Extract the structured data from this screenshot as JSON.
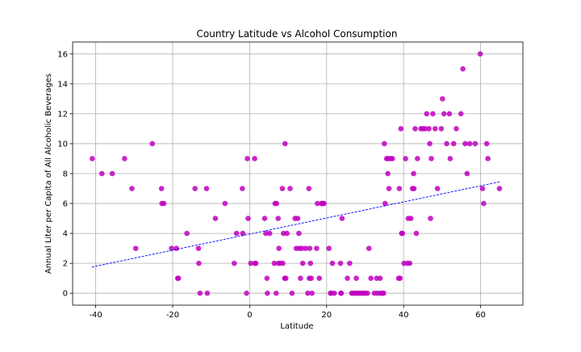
{
  "chart_data": {
    "type": "scatter",
    "title": "Country Latitude vs Alcohol Consumption",
    "xlabel": "Latitude",
    "ylabel": "Annual Liter per Capita of All Alcoholic Beverages",
    "xlim": [
      -46,
      71
    ],
    "ylim": [
      -0.8,
      16.8
    ],
    "xticks": [
      -40,
      -20,
      0,
      20,
      40,
      60
    ],
    "yticks": [
      0,
      2,
      4,
      6,
      8,
      10,
      12,
      14,
      16
    ],
    "grid": true,
    "legend": "none",
    "colors": {
      "points": "#bf00bf",
      "regression": "#0000ff",
      "grid": "#b0b0b0"
    },
    "regression_line": {
      "style": "dashed",
      "x": [
        -41,
        65
      ],
      "y": [
        1.75,
        7.45
      ]
    },
    "series": [
      {
        "x": [
          -40.9,
          -38.4,
          -35.7,
          -32.5,
          -30.6,
          -29.6,
          -25.3,
          -22.9,
          -22.8,
          -22.3,
          -20.3,
          -19.0,
          -18.7,
          -18.5,
          -16.3,
          -14.2,
          -13.3,
          -13.2,
          -12.9,
          -11.2,
          -11.0,
          -8.9,
          -6.4,
          -4.0,
          -3.4,
          -1.9,
          -1.8,
          -0.8,
          -0.6,
          -0.4,
          0.3,
          1.3,
          1.4,
          1.6,
          3.9,
          4.2,
          4.5,
          4.6,
          5.2,
          6.4,
          6.6,
          6.9,
          7.0,
          7.4,
          7.5,
          7.6,
          7.9,
          8.5,
          8.6,
          8.8,
          9.1,
          9.2,
          9.4,
          9.7,
          10.5,
          11.0,
          11.8,
          12.1,
          12.5,
          12.8,
          12.9,
          13.2,
          13.5,
          13.8,
          14.5,
          15.1,
          15.4,
          15.5,
          15.6,
          15.8,
          16.0,
          16.2,
          17.4,
          17.6,
          18.1,
          18.7,
          18.8,
          19.0,
          19.3,
          20.6,
          21.0,
          21.2,
          21.5,
          22.0,
          23.6,
          23.7,
          23.8,
          24.0,
          25.4,
          26.0,
          26.5,
          26.9,
          27.5,
          27.7,
          28.0,
          28.4,
          29.0,
          29.5,
          30.0,
          30.6,
          31.0,
          31.5,
          32.4,
          33.0,
          33.2,
          33.9,
          34.0,
          34.5,
          34.8,
          35.0,
          35.2,
          35.6,
          35.9,
          36.0,
          36.2,
          36.6,
          37.1,
          38.7,
          38.9,
          39.1,
          39.3,
          39.5,
          39.7,
          40.1,
          40.5,
          41.0,
          41.2,
          41.6,
          41.9,
          42.3,
          42.6,
          42.7,
          43.0,
          43.3,
          43.6,
          44.5,
          45.0,
          45.6,
          46.0,
          46.6,
          46.8,
          47.0,
          47.2,
          47.6,
          48.2,
          48.8,
          49.8,
          50.1,
          50.5,
          51.2,
          51.9,
          52.1,
          53.0,
          53.7,
          54.9,
          55.4,
          56.0,
          56.5,
          57.2,
          58.6,
          59.9,
          60.5,
          60.8,
          61.6,
          61.9,
          64.9
        ],
        "y": [
          9,
          8,
          8,
          9,
          7,
          3,
          10,
          7,
          6,
          6,
          3,
          3,
          1,
          1,
          4,
          7,
          3,
          2,
          0,
          7,
          0,
          5,
          6,
          2,
          4,
          7,
          4,
          0,
          9,
          5,
          2,
          9,
          2,
          2,
          5,
          4,
          1,
          0,
          4,
          2,
          6,
          0,
          6,
          5,
          2,
          3,
          2,
          7,
          2,
          4,
          1,
          10,
          1,
          4,
          7,
          0,
          5,
          3,
          5,
          4,
          3,
          1,
          3,
          2,
          3,
          0,
          7,
          1,
          3,
          2,
          1,
          0,
          3,
          6,
          1,
          6,
          6,
          6,
          6,
          3,
          0,
          0,
          2,
          0,
          2,
          0,
          0,
          5,
          1,
          2,
          0,
          0,
          0,
          1,
          0,
          0,
          0,
          0,
          0,
          0,
          3,
          1,
          0,
          1,
          0,
          1,
          0,
          0,
          0,
          10,
          6,
          9,
          8,
          9,
          7,
          9,
          9,
          1,
          7,
          1,
          11,
          4,
          4,
          2,
          9,
          2,
          5,
          2,
          5,
          7,
          8,
          7,
          11,
          4,
          9,
          11,
          11,
          11,
          12,
          11,
          10,
          5,
          9,
          12,
          11,
          7,
          11,
          13,
          12,
          10,
          12,
          9,
          10,
          11,
          12,
          15,
          10,
          8,
          10,
          10,
          16,
          7,
          6,
          10,
          9,
          7
        ]
      }
    ]
  }
}
